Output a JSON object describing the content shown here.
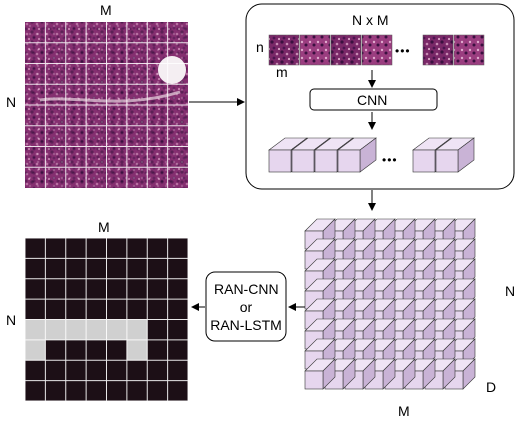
{
  "labels": {
    "top_M": "M",
    "top_N": "N",
    "patch_box_title": "N x M",
    "patch_n": "n",
    "patch_m": "m",
    "ellipsis_patches": "•••",
    "cnn": "CNN",
    "ellipsis_features": "•••",
    "cube_N": "N",
    "cube_M": "M",
    "cube_D": "D",
    "bottom_M": "M",
    "bottom_N": "N",
    "model_line1": "RAN-CNN",
    "model_line2": "or",
    "model_line3": "RAN-LSTM"
  },
  "grid": {
    "rows": 8,
    "cols": 8
  },
  "output_highlight": [
    {
      "row": 4,
      "cols": [
        0,
        1,
        2,
        3,
        4,
        5
      ]
    },
    {
      "row": 5,
      "cols": [
        0,
        5
      ]
    }
  ],
  "colors": {
    "tissue_dark": "#6b1f5a",
    "tissue_light": "#c98bb5",
    "cube_face": "#e6d6ee",
    "cube_top": "#efe4f5",
    "cube_side": "#c9b3d6",
    "output_dark": "#1c0f16",
    "output_highlight": "#d0d0d0",
    "grid_line": "#ffffff"
  }
}
